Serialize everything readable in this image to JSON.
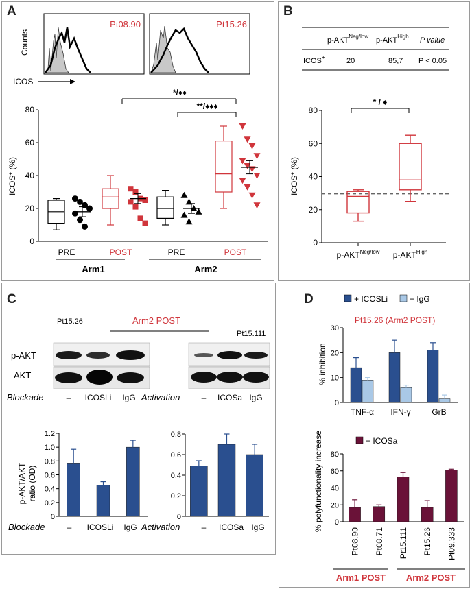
{
  "panels": {
    "a": "A",
    "b": "B",
    "c": "C",
    "d": "D"
  },
  "colors": {
    "red": "#d0353b",
    "navy": "#2a4f8f",
    "light_blue": "#a9c8e6",
    "maroon": "#6a1238",
    "black": "#000000",
    "gray_fill": "#c8c8c8"
  },
  "panel_a": {
    "histograms": [
      {
        "label": "Pt08.90"
      },
      {
        "label": "Pt15.26"
      }
    ],
    "hist_ylabel": "Counts",
    "hist_xlabel": "ICOS",
    "sig1": "*/♦♦",
    "sig2": "**/♦♦♦",
    "groups": {
      "arm1": "Arm1",
      "arm2": "Arm2"
    },
    "group_labels": [
      "PRE",
      "POST",
      "PRE",
      "POST"
    ]
  },
  "panel_b": {
    "table": {
      "col1": "p-AKT",
      "col1_sup": "Neg/low",
      "col2": "p-AKT",
      "col2_sup": "High",
      "col3": "P  value",
      "row_label": "ICOS",
      "row_sup": "+",
      "v1": "20",
      "v2": "85,7",
      "v3": "P < 0.05"
    },
    "sig": "* / ♦"
  },
  "panel_c": {
    "pt_left": "Pt15.26",
    "arm2_post": "Arm2  POST",
    "pt_right": "Pt15.111",
    "row_pakt": "p-AKT",
    "row_akt": "AKT",
    "blockade": "Blockade",
    "activation": "Activation",
    "lanes_left": [
      "–",
      "ICOSLi",
      "IgG"
    ],
    "lanes_right": [
      "–",
      "ICOSa",
      "IgG"
    ]
  },
  "panel_d": {
    "legend1": "+ ICOSLi",
    "legend2": "+ IgG",
    "title1": "Pt15.26 (Arm2 POST)",
    "legend3": "+ ICOSa",
    "arm1_post": "Arm1 POST",
    "arm2_post": "Arm2 POST"
  },
  "chart_data": [
    {
      "type": "box+scatter",
      "panel": "A",
      "ylabel": "ICOS⁺ (%)",
      "ylim": [
        0,
        80
      ],
      "yticks": [
        0,
        20,
        40,
        60,
        80
      ],
      "series": [
        {
          "name": "Arm1 PRE",
          "color": "black",
          "box": {
            "min": 7,
            "q1": 11,
            "median": 18,
            "q3": 25,
            "max": 26
          },
          "points": [
            26,
            24,
            22,
            20,
            17,
            13,
            9
          ],
          "mean": 18,
          "sem": 3
        },
        {
          "name": "Arm1 POST",
          "color": "red",
          "box": {
            "min": 10,
            "q1": 20,
            "median": 27,
            "q3": 32,
            "max": 40
          },
          "points": [
            32,
            30,
            26,
            25,
            24,
            21,
            14,
            11
          ],
          "mean": 26,
          "sem": 3
        },
        {
          "name": "Arm2 PRE",
          "color": "black",
          "box": {
            "min": 10,
            "q1": 14,
            "median": 20,
            "q3": 27,
            "max": 31
          },
          "points": [
            28,
            24,
            20,
            18,
            16,
            12
          ],
          "mean": 20,
          "sem": 3
        },
        {
          "name": "Arm2 POST",
          "color": "red",
          "box": {
            "min": 20,
            "q1": 30,
            "median": 41,
            "q3": 61,
            "max": 70
          },
          "points": [
            70,
            62,
            58,
            52,
            49,
            46,
            44,
            40,
            37,
            33,
            28,
            22
          ],
          "mean": 45,
          "sem": 4
        }
      ]
    },
    {
      "type": "box",
      "panel": "B",
      "ylabel": "ICOS⁺ (%)",
      "ylim": [
        0,
        80
      ],
      "yticks": [
        0,
        20,
        40,
        60,
        80
      ],
      "reference_line": 30,
      "categories": [
        "p-AKT<sup>Neg/low</sup>",
        "p-AKT<sup>High</sup>"
      ],
      "category_text": [
        {
          "main": "p-AKT",
          "sup": "Neg/low"
        },
        {
          "main": "p-AKT",
          "sup": "High"
        }
      ],
      "boxes": [
        {
          "min": 13,
          "q1": 18,
          "median": 28,
          "q3": 31,
          "max": 32
        },
        {
          "min": 25,
          "q1": 32,
          "median": 38,
          "q3": 60,
          "max": 65
        }
      ]
    },
    {
      "type": "bar",
      "panel": "C-left",
      "ylabel": "p-AKT/AKT\nratio (OD)",
      "ylabel_lines": [
        "p-AKT/AKT",
        "ratio (OD)"
      ],
      "ylim": [
        0,
        1.2
      ],
      "yticks": [
        "0",
        "0.2",
        "0.4",
        "0.6",
        "0.8",
        "1.0",
        "1.2"
      ],
      "categories": [
        "–",
        "ICOSLi",
        "IgG"
      ],
      "values": [
        0.77,
        0.45,
        1.0
      ],
      "errors": [
        0.2,
        0.05,
        0.1
      ]
    },
    {
      "type": "bar",
      "panel": "C-right",
      "ylim": [
        0,
        0.8
      ],
      "yticks": [
        "0",
        "0.2",
        "0.4",
        "0.6",
        "0.8"
      ],
      "categories": [
        "–",
        "ICOSa",
        "IgG"
      ],
      "values": [
        0.49,
        0.7,
        0.6
      ],
      "errors": [
        0.05,
        0.1,
        0.1
      ]
    },
    {
      "type": "bar",
      "panel": "D-top",
      "ylabel": "% inhibition",
      "ylim": [
        0,
        30
      ],
      "yticks": [
        "0",
        "10",
        "20",
        "30"
      ],
      "categories": [
        "TNF-α",
        "IFN-γ",
        "GrB"
      ],
      "series": [
        {
          "name": "+ ICOSLi",
          "values": [
            14,
            20,
            21
          ],
          "errors": [
            4,
            5,
            3
          ]
        },
        {
          "name": "+ IgG",
          "values": [
            9,
            6,
            1.5
          ],
          "errors": [
            1,
            1,
            1.5
          ]
        }
      ]
    },
    {
      "type": "bar",
      "panel": "D-bottom",
      "ylabel": "% polyfunctionality increase",
      "ylim": [
        0,
        80
      ],
      "yticks": [
        "0",
        "20",
        "40",
        "60",
        "80"
      ],
      "categories": [
        "Pt08.90",
        "Pt08.71",
        "Pt15.111",
        "Pt15.26",
        "Pt09.333"
      ],
      "series": [
        {
          "name": "+ ICOSa",
          "values": [
            17,
            18,
            53,
            17,
            61
          ],
          "errors": [
            9,
            2,
            5,
            8,
            1
          ]
        }
      ]
    }
  ]
}
